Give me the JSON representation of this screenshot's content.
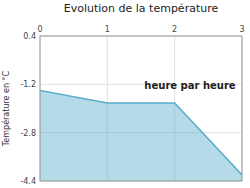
{
  "chart_data": {
    "type": "area",
    "title": "Evolution de la température",
    "y_label": "Température en °C",
    "x": [
      0,
      1,
      2,
      3
    ],
    "values": [
      -1.4,
      -1.82,
      -1.82,
      -4.2
    ],
    "color": "#5aaccc",
    "xlim": [
      0,
      3
    ],
    "ylim": [
      -4.4,
      0.4
    ],
    "xticks": [
      0,
      1,
      2,
      3
    ],
    "yticks": [
      0.4,
      -1.2,
      -2.8,
      -4.4
    ],
    "grid": true,
    "annotations": [
      {
        "text": "heure par heure",
        "x": 1.55,
        "y": -1.1
      }
    ]
  }
}
